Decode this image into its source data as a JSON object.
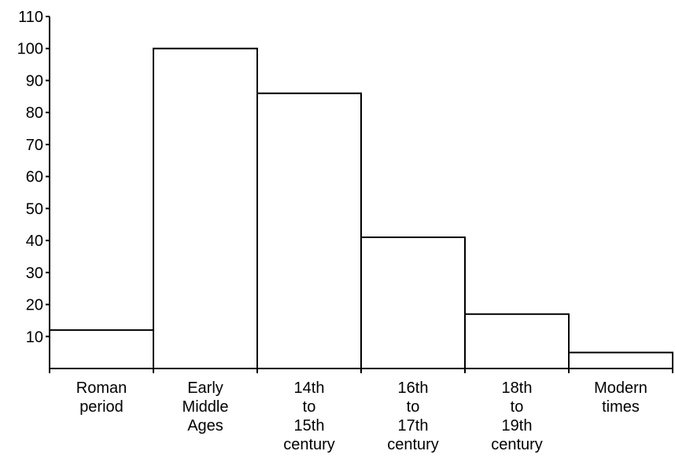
{
  "chart_data": {
    "type": "bar",
    "title": "",
    "xlabel": "",
    "ylabel": "",
    "categories": [
      [
        "Roman",
        "period"
      ],
      [
        "Early",
        "Middle",
        "Ages"
      ],
      [
        "14th",
        "to",
        "15th",
        "century"
      ],
      [
        "16th",
        "to",
        "17th",
        "century"
      ],
      [
        "18th",
        "to",
        "19th",
        "century"
      ],
      [
        "Modern",
        "times"
      ]
    ],
    "values": [
      12,
      100,
      86,
      41,
      17,
      5
    ],
    "ylim": [
      0,
      110
    ],
    "yticks": [
      10,
      20,
      30,
      40,
      50,
      60,
      70,
      80,
      90,
      100,
      110
    ],
    "grid": false,
    "colors": {
      "bar_fill": "#ffffff",
      "bar_stroke": "#000000",
      "axis": "#000000"
    }
  }
}
